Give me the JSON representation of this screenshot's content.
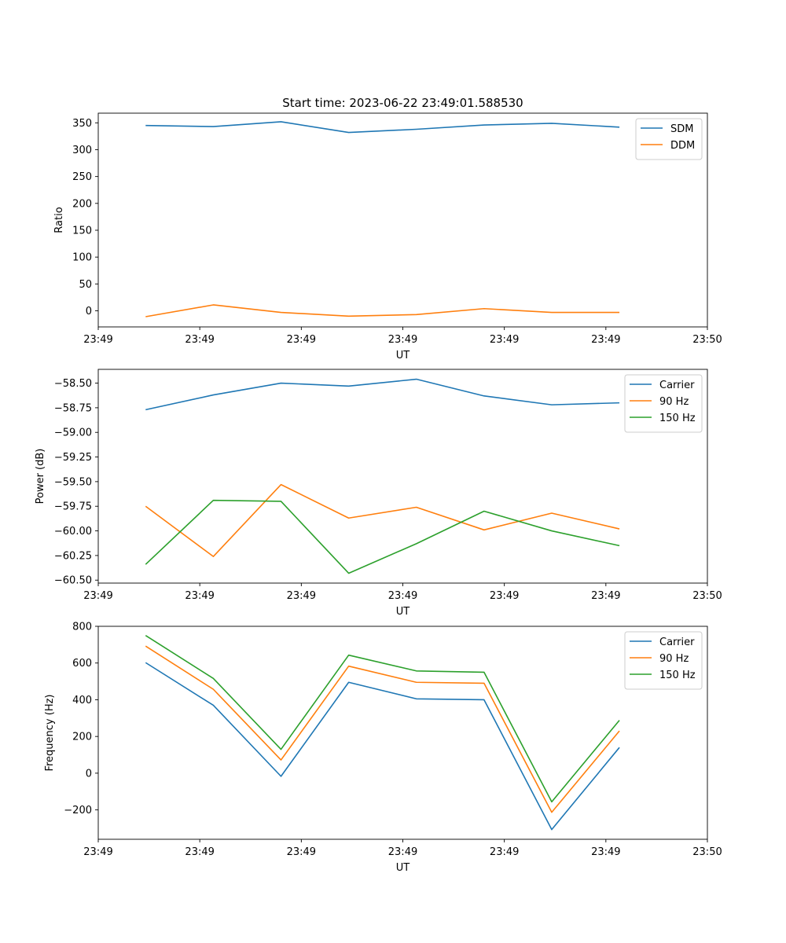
{
  "figure": {
    "title": "Start time: 2023-06-22 23:49:01.588530"
  },
  "chart_data": [
    {
      "type": "line",
      "xlabel": "UT",
      "ylabel": "Ratio",
      "x": [
        1,
        2,
        3,
        4,
        5,
        6,
        7,
        8
      ],
      "xlim": [
        0.3,
        9.3
      ],
      "xticks": [
        0.3,
        1.8,
        3.3,
        4.8,
        6.3,
        7.8,
        9.3
      ],
      "xtick_labels": [
        "23:49",
        "23:49",
        "23:49",
        "23:49",
        "23:49",
        "23:49",
        "23:50"
      ],
      "ylim": [
        -30,
        368
      ],
      "yticks": [
        0,
        50,
        100,
        150,
        200,
        250,
        300,
        350
      ],
      "ytick_labels": [
        "0",
        "50",
        "100",
        "150",
        "200",
        "250",
        "300",
        "350"
      ],
      "legend": "top-right",
      "grid": false,
      "series": [
        {
          "name": "SDM",
          "color": "#1f77b4",
          "values": [
            345,
            343,
            352,
            332,
            338,
            346,
            349,
            342
          ]
        },
        {
          "name": "DDM",
          "color": "#ff7f0e",
          "values": [
            -11,
            11,
            -3,
            -10,
            -7,
            4,
            -3,
            -3
          ]
        }
      ]
    },
    {
      "type": "line",
      "xlabel": "UT",
      "ylabel": "Power (dB)",
      "x": [
        1,
        2,
        3,
        4,
        5,
        6,
        7,
        8
      ],
      "xlim": [
        0.3,
        9.3
      ],
      "xticks": [
        0.3,
        1.8,
        3.3,
        4.8,
        6.3,
        7.8,
        9.3
      ],
      "xtick_labels": [
        "23:49",
        "23:49",
        "23:49",
        "23:49",
        "23:49",
        "23:49",
        "23:50"
      ],
      "ylim": [
        -60.53,
        -58.36
      ],
      "yticks": [
        -58.5,
        -58.75,
        -59.0,
        -59.25,
        -59.5,
        -59.75,
        -60.0,
        -60.25,
        -60.5
      ],
      "ytick_labels": [
        "−58.50",
        "−58.75",
        "−59.00",
        "−59.25",
        "−59.50",
        "−59.75",
        "−60.00",
        "−60.25",
        "−60.50"
      ],
      "legend": "top-right",
      "grid": false,
      "series": [
        {
          "name": "Carrier",
          "color": "#1f77b4",
          "values": [
            -58.77,
            -58.62,
            -58.5,
            -58.53,
            -58.46,
            -58.63,
            -58.72,
            -58.7
          ]
        },
        {
          "name": "90 Hz",
          "color": "#ff7f0e",
          "values": [
            -59.75,
            -60.26,
            -59.53,
            -59.87,
            -59.76,
            -59.99,
            -59.82,
            -59.98
          ]
        },
        {
          "name": "150 Hz",
          "color": "#2ca02c",
          "values": [
            -60.34,
            -59.69,
            -59.7,
            -60.43,
            -60.13,
            -59.8,
            -60.0,
            -60.15
          ]
        }
      ]
    },
    {
      "type": "line",
      "xlabel": "UT",
      "ylabel": "Frequency (Hz)",
      "x": [
        1,
        2,
        3,
        4,
        5,
        6,
        7,
        8
      ],
      "xlim": [
        0.3,
        9.3
      ],
      "xticks": [
        0.3,
        1.8,
        3.3,
        4.8,
        6.3,
        7.8,
        9.3
      ],
      "xtick_labels": [
        "23:49",
        "23:49",
        "23:49",
        "23:49",
        "23:49",
        "23:49",
        "23:50"
      ],
      "ylim": [
        -360,
        800
      ],
      "yticks": [
        -200,
        0,
        200,
        400,
        600,
        800
      ],
      "ytick_labels": [
        "−200",
        "0",
        "200",
        "400",
        "600",
        "800"
      ],
      "legend": "top-right",
      "grid": false,
      "series": [
        {
          "name": "Carrier",
          "color": "#1f77b4",
          "values": [
            602,
            370,
            -17,
            495,
            405,
            400,
            -307,
            140
          ]
        },
        {
          "name": "90 Hz",
          "color": "#ff7f0e",
          "values": [
            692,
            457,
            72,
            583,
            495,
            490,
            -213,
            230
          ]
        },
        {
          "name": "150 Hz",
          "color": "#2ca02c",
          "values": [
            750,
            516,
            130,
            643,
            557,
            550,
            -156,
            288
          ]
        }
      ]
    }
  ]
}
